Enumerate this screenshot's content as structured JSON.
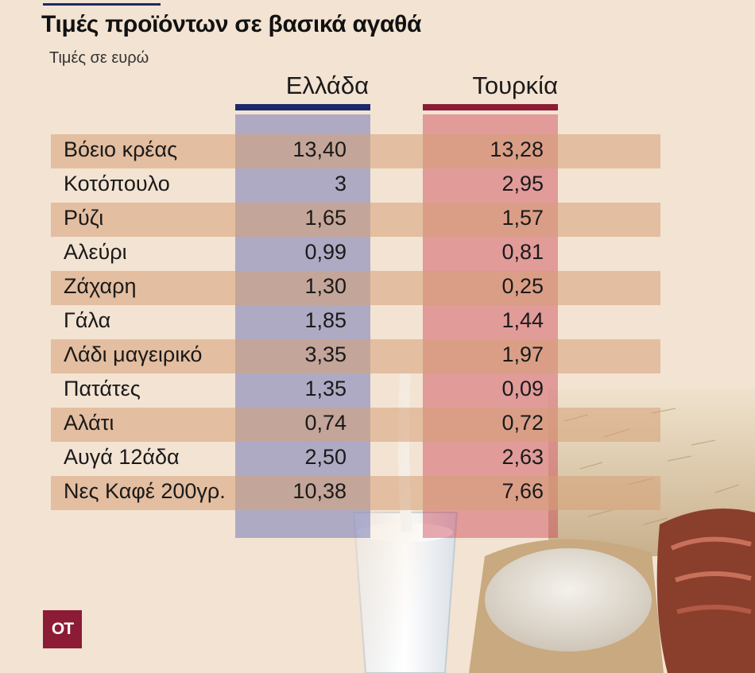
{
  "header": {
    "title": "Τιμές προϊόντων σε βασικά αγαθά",
    "subtitle": "Τιμές σε ευρώ"
  },
  "columns": {
    "greece": "Ελλάδα",
    "turkey": "Τουρκία"
  },
  "colors": {
    "greece_accent": "#1c2a6b",
    "turkey_accent": "#8c1c35",
    "row_shade": "#d6a076",
    "background": "#f3e3d2"
  },
  "logo": {
    "text": "OT"
  },
  "chart_data": {
    "type": "table",
    "columns": [
      "Ελλάδα",
      "Τουρκία"
    ],
    "rows": [
      {
        "label": "Βόειο κρέας",
        "greece": "13,40",
        "turkey": "13,28"
      },
      {
        "label": "Κοτόπουλο",
        "greece": "3",
        "turkey": "2,95"
      },
      {
        "label": "Ρύζι",
        "greece": "1,65",
        "turkey": "1,57"
      },
      {
        "label": "Αλεύρι",
        "greece": "0,99",
        "turkey": "0,81"
      },
      {
        "label": "Ζάχαρη",
        "greece": "1,30",
        "turkey": "0,25"
      },
      {
        "label": "Γάλα",
        "greece": "1,85",
        "turkey": "1,44"
      },
      {
        "label": "Λάδι μαγειρικό",
        "greece": "3,35",
        "turkey": "1,97"
      },
      {
        "label": "Πατάτες",
        "greece": "1,35",
        "turkey": "0,09"
      },
      {
        "label": "Αλάτι",
        "greece": "0,74",
        "turkey": "0,72"
      },
      {
        "label": "Αυγά 12άδα",
        "greece": "2,50",
        "turkey": "2,63"
      },
      {
        "label": "Νες Καφέ 200γρ.",
        "greece": "10,38",
        "turkey": "7,66"
      }
    ]
  }
}
